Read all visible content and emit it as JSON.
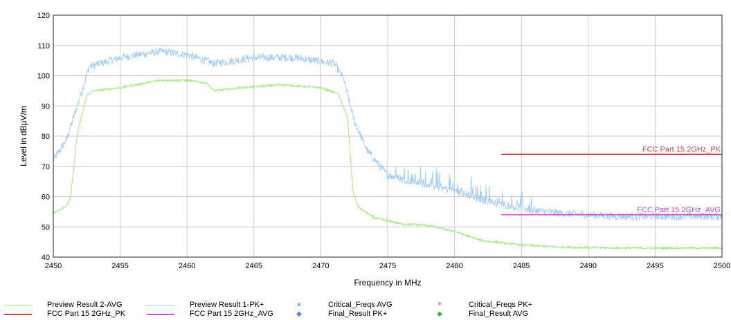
{
  "chart_data": {
    "type": "line",
    "xlabel": "Frequency in MHz",
    "ylabel": "Level in dBµV/m",
    "xlim": [
      2450,
      2500
    ],
    "ylim": [
      40,
      120
    ],
    "x_ticks": [
      "2450",
      "2455",
      "2460",
      "2465",
      "2470",
      "2475",
      "2480",
      "2485",
      "2490",
      "2495",
      "2500"
    ],
    "y_ticks": [
      "40",
      "50",
      "60",
      "70",
      "80",
      "90",
      "100",
      "110",
      "120"
    ],
    "grid": true,
    "legend_position": "bottom",
    "series": [
      {
        "name": "Preview Result 1-PK+",
        "color": "#a7cdf4",
        "style": "noisy-line",
        "noise": 1.3,
        "x": [
          2450,
          2451,
          2452,
          2452.7,
          2455,
          2458,
          2460,
          2462,
          2465,
          2468,
          2471,
          2471.7,
          2472.5,
          2473.5,
          2475,
          2478,
          2480,
          2482,
          2484,
          2486,
          2488,
          2490,
          2492,
          2495,
          2500
        ],
        "y": [
          72,
          79,
          93,
          103,
          106,
          108,
          107,
          104,
          106,
          106,
          104,
          99,
          85,
          75,
          67,
          64,
          62,
          59,
          57,
          55.5,
          54.5,
          54,
          53.5,
          53.5,
          53.5
        ]
      },
      {
        "name": "Preview Result 2-AVG",
        "color": "#9fea7e",
        "style": "line",
        "noise": 0.35,
        "x": [
          2450,
          2451,
          2451.3,
          2451.8,
          2452.5,
          2453,
          2455,
          2458,
          2460,
          2461.5,
          2462,
          2464,
          2467,
          2470,
          2471.3,
          2472,
          2472.4,
          2472.8,
          2474,
          2476,
          2478,
          2480,
          2482,
          2485,
          2488,
          2492,
          2500
        ],
        "y": [
          54.5,
          57,
          60,
          81,
          93.5,
          95,
          96,
          98.5,
          98.5,
          97.5,
          95,
          96,
          97,
          96,
          94,
          86,
          62,
          56.5,
          53,
          51,
          50.5,
          48.5,
          45.5,
          44,
          43.3,
          43,
          43
        ]
      }
    ],
    "limit_lines": [
      {
        "name": "FCC Part 15 2GHz_PK",
        "color": "#e0393e",
        "x": [
          2483.5,
          2500
        ],
        "y": [
          74,
          74
        ]
      },
      {
        "name": "FCC Part 15 2GHz_AVG",
        "color": "#e040e0",
        "x": [
          2483.5,
          2500
        ],
        "y": [
          54,
          54
        ]
      }
    ]
  },
  "legend": [
    {
      "label": "Preview Result 2-AVG",
      "color": "#9fea7e",
      "kind": "line"
    },
    {
      "label": "Preview Result 1-PK+",
      "color": "#a7cdf4",
      "kind": "line"
    },
    {
      "label": "Critical_Freqs AVG",
      "color": "#1f3fd6",
      "kind": "x",
      "marker": "×"
    },
    {
      "label": "Critical_Freqs PK+",
      "color": "#e0393e",
      "kind": "star",
      "marker": "*"
    },
    {
      "label": "FCC Part 15 2GHz_PK",
      "color": "#e0393e",
      "kind": "line"
    },
    {
      "label": "FCC Part 15 2GHz_AVG",
      "color": "#e040e0",
      "kind": "line"
    },
    {
      "label": "Final_Result PK+",
      "color": "#3f8fe0",
      "kind": "diamond",
      "marker": "◆"
    },
    {
      "label": "Final_Result AVG",
      "color": "#3fae3f",
      "kind": "diamond",
      "marker": "◆"
    }
  ]
}
